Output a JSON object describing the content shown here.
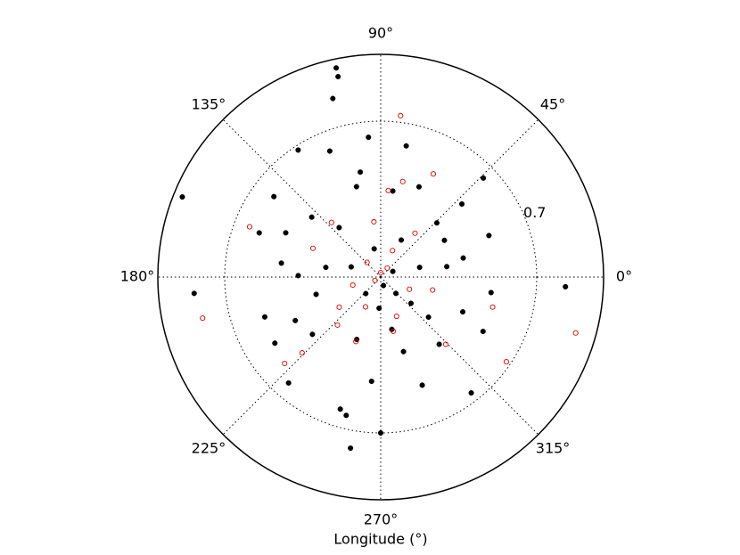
{
  "chart_data": {
    "type": "polar-scatter",
    "xlabel": "Longitude (°)",
    "thetaticks": [
      {
        "value": 0,
        "label": "0°"
      },
      {
        "value": 45,
        "label": "45°"
      },
      {
        "value": 90,
        "label": "90°"
      },
      {
        "value": 135,
        "label": "135°"
      },
      {
        "value": 180,
        "label": "180°"
      },
      {
        "value": 225,
        "label": "225°"
      },
      {
        "value": 270,
        "label": "270°"
      },
      {
        "value": 315,
        "label": "315°"
      }
    ],
    "rlim": [
      0,
      1
    ],
    "rticks": [
      0.7
    ],
    "grid": true,
    "series": [
      {
        "color": "#000000",
        "filled": true,
        "theta": [
          102,
          102,
          105,
          158,
          185,
          357,
          270,
          260,
          253,
          256,
          44,
          308,
          332,
          352,
          337,
          95,
          79,
          112,
          123,
          143,
          160,
          172,
          199,
          212,
          229,
          265,
          291,
          311,
          30,
          21,
          42,
          101,
          139,
          179,
          195,
          220,
          249,
          282,
          319,
          14,
          61,
          103,
          161,
          228,
          288,
          25,
          267,
          130,
          44,
          13,
          320,
          287,
          155,
          207,
          105,
          82,
          67,
          9,
          170,
          313
        ],
        "r": [
          0.96,
          0.92,
          0.83,
          0.96,
          0.84,
          0.83,
          0.7,
          0.78,
          0.62,
          0.64,
          0.64,
          0.66,
          0.52,
          0.5,
          0.4,
          0.63,
          0.6,
          0.61,
          0.68,
          0.6,
          0.58,
          0.45,
          0.55,
          0.56,
          0.63,
          0.47,
          0.52,
          0.4,
          0.33,
          0.52,
          0.49,
          0.48,
          0.41,
          0.37,
          0.3,
          0.4,
          0.3,
          0.24,
          0.18,
          0.18,
          0.19,
          0.13,
          0.14,
          0.1,
          0.04,
          0.06,
          0.14,
          0.29,
          0.35,
          0.38,
          0.28,
          0.35,
          0.47,
          0.43,
          0.42,
          0.39,
          0.44,
          0.3,
          0.25,
          0.1
        ]
      },
      {
        "color": "#e00000",
        "filled": false,
        "theta": [
          83,
          63,
          344,
          326,
          345,
          193,
          159,
          222,
          224,
          314,
          283,
          85,
          77,
          97,
          132,
          228,
          249,
          90,
          210,
          54,
          243,
          337,
          346,
          196,
          52,
          157,
          66,
          133,
          292,
          216
        ],
        "r": [
          0.73,
          0.52,
          0.91,
          0.68,
          0.52,
          0.82,
          0.63,
          0.58,
          0.49,
          0.42,
          0.25,
          0.39,
          0.44,
          0.25,
          0.33,
          0.29,
          0.31,
          0.02,
          0.03,
          0.05,
          0.15,
          0.14,
          0.24,
          0.13,
          0.25,
          0.33,
          0.13,
          0.09,
          0.19,
          0.23
        ]
      }
    ]
  }
}
